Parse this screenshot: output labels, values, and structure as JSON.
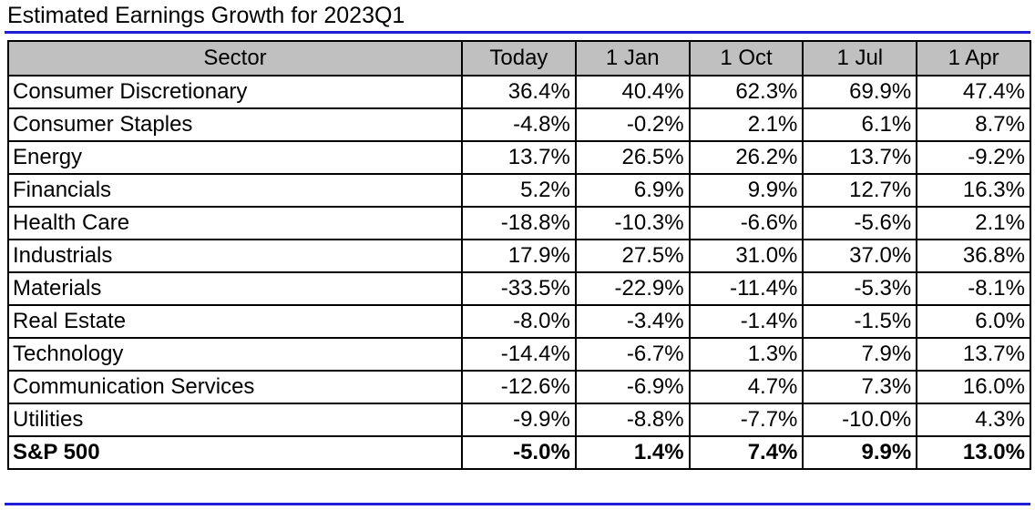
{
  "chart_data": {
    "type": "table",
    "title": "Estimated Earnings Growth for 2023Q1",
    "columns": [
      "Sector",
      "Today",
      "1 Jan",
      "1 Oct",
      "1 Jul",
      "1 Apr"
    ],
    "rows": [
      {
        "sector": "Consumer Discretionary",
        "values": [
          "36.4%",
          "40.4%",
          "62.3%",
          "69.9%",
          "47.4%"
        ]
      },
      {
        "sector": "Consumer Staples",
        "values": [
          "-4.8%",
          "-0.2%",
          "2.1%",
          "6.1%",
          "8.7%"
        ]
      },
      {
        "sector": "Energy",
        "values": [
          "13.7%",
          "26.5%",
          "26.2%",
          "13.7%",
          "-9.2%"
        ]
      },
      {
        "sector": "Financials",
        "values": [
          "5.2%",
          "6.9%",
          "9.9%",
          "12.7%",
          "16.3%"
        ]
      },
      {
        "sector": "Health Care",
        "values": [
          "-18.8%",
          "-10.3%",
          "-6.6%",
          "-5.6%",
          "2.1%"
        ]
      },
      {
        "sector": "Industrials",
        "values": [
          "17.9%",
          "27.5%",
          "31.0%",
          "37.0%",
          "36.8%"
        ]
      },
      {
        "sector": "Materials",
        "values": [
          "-33.5%",
          "-22.9%",
          "-11.4%",
          "-5.3%",
          "-8.1%"
        ]
      },
      {
        "sector": "Real Estate",
        "values": [
          "-8.0%",
          "-3.4%",
          "-1.4%",
          "-1.5%",
          "6.0%"
        ]
      },
      {
        "sector": "Technology",
        "values": [
          "-14.4%",
          "-6.7%",
          "1.3%",
          "7.9%",
          "13.7%"
        ]
      },
      {
        "sector": "Communication Services",
        "values": [
          "-12.6%",
          "-6.9%",
          "4.7%",
          "7.3%",
          "16.0%"
        ]
      },
      {
        "sector": "Utilities",
        "values": [
          "-9.9%",
          "-8.8%",
          "-7.7%",
          "-10.0%",
          "4.3%"
        ]
      }
    ],
    "total": {
      "sector": "S&P 500",
      "values": [
        "-5.0%",
        "1.4%",
        "7.4%",
        "9.9%",
        "13.0%"
      ]
    },
    "colors": {
      "header_bg": "#c0c0c0",
      "rule": "#1f1fd6",
      "border": "#000000"
    }
  }
}
